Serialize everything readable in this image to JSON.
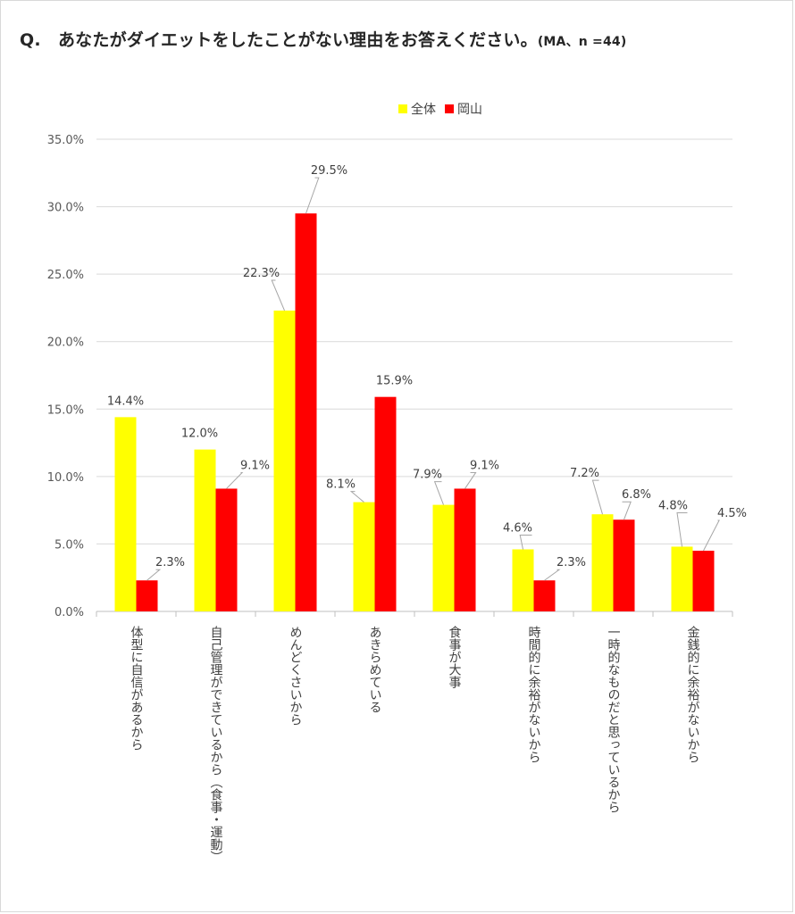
{
  "title": {
    "main": "Q.　あなたがダイエットをしたことがない理由をお答えください。",
    "note": "(MA、n =44)"
  },
  "legend": [
    {
      "label": "全体",
      "color": "#FFFF00"
    },
    {
      "label": "岡山",
      "color": "#FF0000"
    }
  ],
  "chart_data": {
    "type": "bar",
    "categories": [
      "体型に自信があるから",
      "自己管理ができているから（食事・運動）",
      "めんどくさいから",
      "あきらめている",
      "食事が大事",
      "時間的に余裕がないから",
      "一時的なものだと思っているから",
      "金銭的に余裕がないから"
    ],
    "series": [
      {
        "name": "全体",
        "color": "#FFFF00",
        "values": [
          14.4,
          12.0,
          22.3,
          8.1,
          7.9,
          4.6,
          7.2,
          4.8
        ],
        "labels": [
          "14.4%",
          "12.0%",
          "22.3%",
          "8.1%",
          "7.9%",
          "4.6%",
          "7.2%",
          "4.8%"
        ]
      },
      {
        "name": "岡山",
        "color": "#FF0000",
        "values": [
          2.3,
          9.1,
          29.5,
          15.9,
          9.1,
          2.3,
          6.8,
          4.5
        ],
        "labels": [
          "2.3%",
          "9.1%",
          "29.5%",
          "15.9%",
          "9.1%",
          "2.3%",
          "6.8%",
          "4.5%"
        ]
      }
    ],
    "ylim": [
      0,
      35
    ],
    "yticks": [
      0,
      5,
      10,
      15,
      20,
      25,
      30,
      35
    ],
    "ytick_labels": [
      "0.0%",
      "5.0%",
      "10.0%",
      "15.0%",
      "20.0%",
      "25.0%",
      "30.0%",
      "35.0%"
    ],
    "grid": true,
    "legend_position": "top-center"
  }
}
